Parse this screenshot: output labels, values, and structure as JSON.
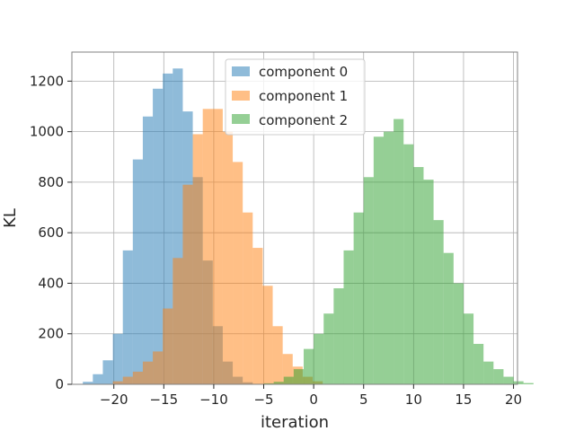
{
  "chart_data": {
    "type": "histogram",
    "title": "",
    "xlabel": "iteration",
    "ylabel": "KL",
    "xlim": [
      -24.2,
      20.4
    ],
    "ylim": [
      0,
      1315
    ],
    "xticks": [
      -20,
      -15,
      -10,
      -5,
      0,
      5,
      10,
      15,
      20
    ],
    "xtick_labels": [
      "−20",
      "−15",
      "−10",
      "−5",
      "0",
      "5",
      "10",
      "15",
      "20"
    ],
    "yticks": [
      0,
      200,
      400,
      600,
      800,
      1000,
      1200
    ],
    "ytick_labels": [
      "0",
      "200",
      "400",
      "600",
      "800",
      "1000",
      "1200"
    ],
    "grid": true,
    "legend_position": "upper center",
    "bar_alpha": 0.5,
    "series": [
      {
        "name": "component 0",
        "color": "#1f77b4",
        "bin_start": -23.1,
        "bin_width": 1.0,
        "counts": [
          10,
          40,
          95,
          200,
          530,
          890,
          1060,
          1170,
          1230,
          1250,
          1080,
          820,
          490,
          230,
          90,
          30,
          8
        ]
      },
      {
        "name": "component 1",
        "color": "#ff7f0e",
        "bin_start": -20.1,
        "bin_width": 1.0,
        "counts": [
          12,
          30,
          50,
          90,
          130,
          300,
          500,
          790,
          990,
          1090,
          1090,
          1000,
          880,
          680,
          540,
          390,
          230,
          120,
          70,
          30,
          12
        ]
      },
      {
        "name": "component 2",
        "color": "#2ca02c",
        "bin_start": -5.0,
        "bin_width": 1.0,
        "counts": [
          4,
          10,
          30,
          60,
          140,
          200,
          280,
          380,
          530,
          680,
          820,
          980,
          1000,
          1050,
          950,
          860,
          810,
          650,
          520,
          400,
          280,
          160,
          90,
          60,
          30,
          12,
          5
        ]
      }
    ]
  }
}
